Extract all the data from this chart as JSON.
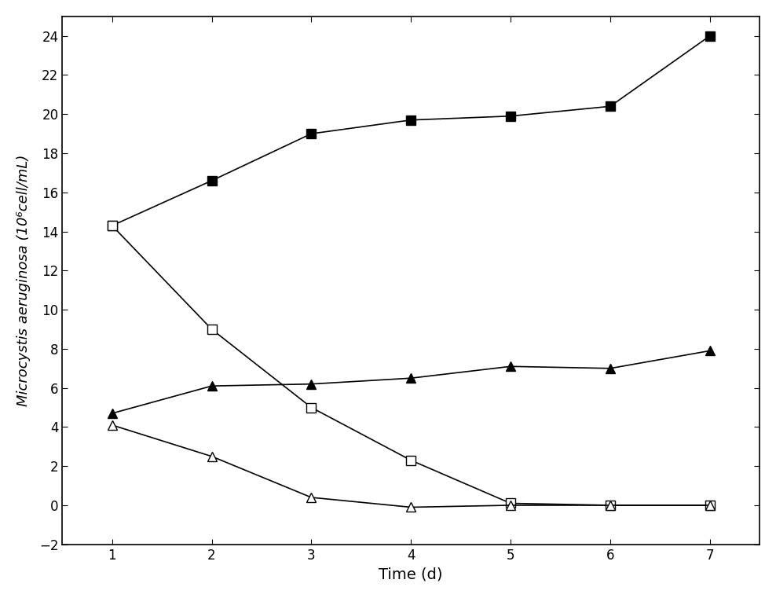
{
  "time": [
    1,
    2,
    3,
    4,
    5,
    6,
    7
  ],
  "filled_square": [
    14.3,
    16.6,
    19.0,
    19.7,
    19.9,
    20.4,
    24.0
  ],
  "open_square": [
    14.3,
    9.0,
    5.0,
    2.3,
    0.1,
    0.0,
    0.0
  ],
  "filled_triangle": [
    4.7,
    6.1,
    6.2,
    6.5,
    7.1,
    7.0,
    7.9
  ],
  "open_triangle": [
    4.1,
    2.5,
    0.4,
    -0.1,
    0.0,
    0.0,
    0.0
  ],
  "xlabel": "Time (d)",
  "ylabel": "Microcystis aeruginosa (10⁶cell/mL)",
  "xlim": [
    0.5,
    7.5
  ],
  "ylim": [
    -2,
    25
  ],
  "yticks": [
    -2,
    0,
    2,
    4,
    6,
    8,
    10,
    12,
    14,
    16,
    18,
    20,
    22,
    24
  ],
  "xticks": [
    1,
    2,
    3,
    4,
    5,
    6,
    7
  ],
  "line_color": "#000000",
  "background_color": "#ffffff"
}
